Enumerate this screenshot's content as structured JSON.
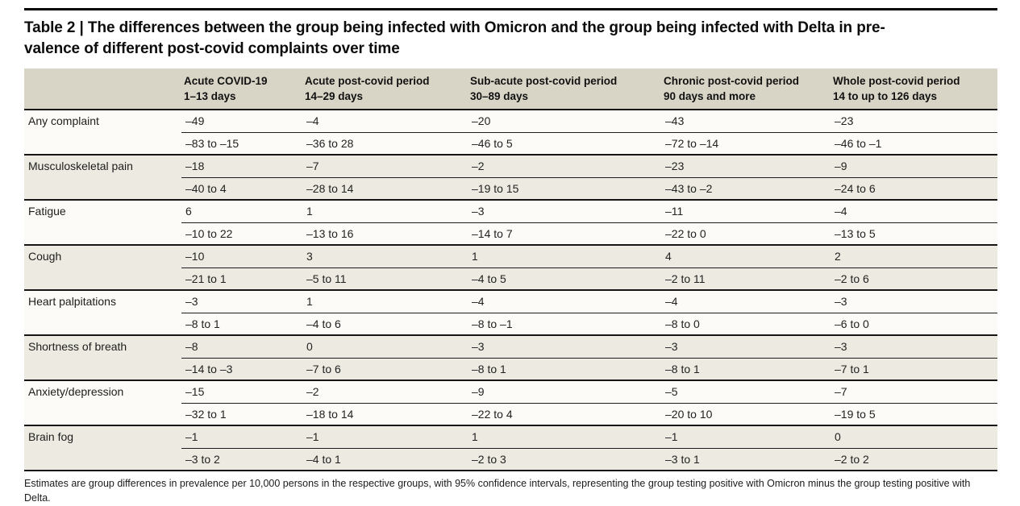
{
  "title_lines": [
    "Table 2 | The differences between the group being infected with Omicron and the group being infected with Delta in pre-",
    "valence of different post-covid complaints over time"
  ],
  "colors": {
    "header_bg": "#d9d5c6",
    "stripe_bg": "#edebe1",
    "row_bg": "#fcfbf7",
    "rule": "#161616"
  },
  "table": {
    "columns": [
      {
        "label": "Acute COVID-19",
        "sublabel": "1–13 days"
      },
      {
        "label": "Acute post-covid period",
        "sublabel": "14–29 days"
      },
      {
        "label": "Sub-acute post-covid period",
        "sublabel": "30–89 days"
      },
      {
        "label": "Chronic post-covid period",
        "sublabel": "90 days and more"
      },
      {
        "label": "Whole post-covid period",
        "sublabel": "14 to up to 126 days"
      }
    ],
    "rows": [
      {
        "label": "Any complaint",
        "estimates": [
          "–49",
          "–4",
          "–20",
          "–43",
          "–23"
        ],
        "intervals": [
          "–83 to –15",
          "–36 to 28",
          "–46 to 5",
          "–72 to –14",
          "–46 to –1"
        ]
      },
      {
        "label": "Musculoskeletal pain",
        "estimates": [
          "–18",
          "–7",
          "–2",
          "–23",
          "–9"
        ],
        "intervals": [
          "–40 to 4",
          "–28 to 14",
          "–19 to 15",
          "–43 to –2",
          "–24 to 6"
        ]
      },
      {
        "label": "Fatigue",
        "estimates": [
          "6",
          "1",
          "–3",
          "–11",
          "–4"
        ],
        "intervals": [
          "–10 to 22",
          "–13 to 16",
          "–14 to 7",
          "–22 to 0",
          "–13 to 5"
        ]
      },
      {
        "label": "Cough",
        "estimates": [
          "–10",
          "3",
          "1",
          "4",
          "2"
        ],
        "intervals": [
          "–21 to 1",
          "–5 to 11",
          "–4 to 5",
          "–2 to 11",
          "–2 to 6"
        ]
      },
      {
        "label": "Heart palpitations",
        "estimates": [
          "–3",
          "1",
          "–4",
          "–4",
          "–3"
        ],
        "intervals": [
          "–8 to 1",
          "–4 to 6",
          "–8 to –1",
          "–8 to 0",
          "–6 to 0"
        ]
      },
      {
        "label": "Shortness of breath",
        "estimates": [
          "–8",
          "0",
          "–3",
          "–3",
          "–3"
        ],
        "intervals": [
          "–14 to –3",
          "–7 to 6",
          "–8 to 1",
          "–8 to 1",
          "–7 to 1"
        ]
      },
      {
        "label": "Anxiety/depression",
        "estimates": [
          "–15",
          "–2",
          "–9",
          "–5",
          "–7"
        ],
        "intervals": [
          "–32 to 1",
          "–18 to 14",
          "–22 to 4",
          "–20 to 10",
          "–19 to 5"
        ]
      },
      {
        "label": "Brain fog",
        "estimates": [
          "–1",
          "–1",
          "1",
          "–1",
          "0"
        ],
        "intervals": [
          "–3 to 2",
          "–4 to 1",
          "–2 to 3",
          "–3 to 1",
          "–2 to 2"
        ]
      }
    ]
  },
  "footnote": "Estimates are group differences in prevalence per 10,000 persons in the respective groups, with 95% confidence intervals, representing the group testing positive with Omicron minus the group testing positive with Delta."
}
